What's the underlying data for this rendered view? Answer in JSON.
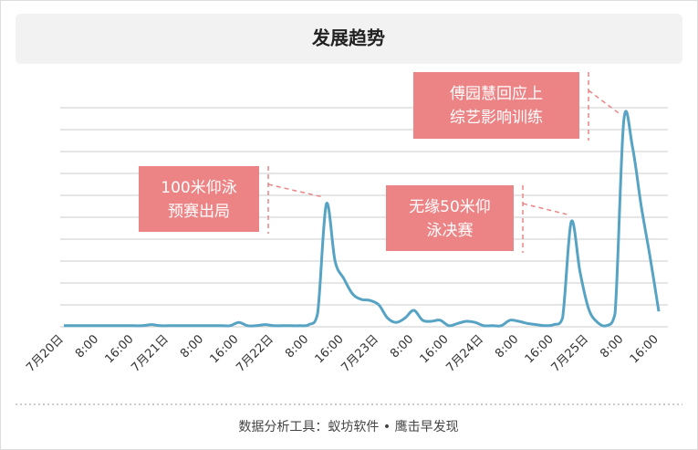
{
  "chart_data": {
    "type": "line",
    "title": "发展趋势",
    "footer": "数据分析工具：蚁坊软件 • 鹰击早发现",
    "categories": [
      "7月20日",
      null,
      null,
      null,
      "8:00",
      null,
      null,
      null,
      "16:00",
      null,
      null,
      null,
      "7月21日",
      null,
      null,
      null,
      "8:00",
      null,
      null,
      null,
      "16:00",
      null,
      null,
      null,
      "7月22日",
      null,
      null,
      null,
      "8:00",
      null,
      null,
      null,
      "16:00",
      null,
      null,
      null,
      "7月23日",
      null,
      null,
      null,
      "8:00",
      null,
      null,
      null,
      "16:00",
      null,
      null,
      null,
      "7月24日",
      null,
      null,
      null,
      "8:00",
      null,
      null,
      null,
      "16:00",
      null,
      null,
      null,
      "7月25日",
      null,
      null,
      null,
      "8:00",
      null,
      null,
      null,
      "16:00"
    ],
    "series": [
      {
        "color": "#57a3c4",
        "values": [
          0.05,
          0.05,
          0.05,
          0.05,
          0.05,
          0.05,
          0.05,
          0.05,
          0.05,
          0.05,
          0.1,
          0.05,
          0.05,
          0.05,
          0.05,
          0.05,
          0.05,
          0.05,
          0.05,
          0.05,
          0.2,
          0.05,
          0.05,
          0.1,
          0.05,
          0.05,
          0.05,
          0.05,
          0.1,
          0.6,
          5.6,
          3.0,
          2.2,
          1.5,
          1.25,
          1.2,
          1.0,
          0.4,
          0.2,
          0.4,
          0.75,
          0.3,
          0.25,
          0.3,
          0.05,
          0.15,
          0.25,
          0.2,
          0.05,
          0.05,
          0.05,
          0.3,
          0.25,
          0.15,
          0.1,
          0.05,
          0.1,
          0.4,
          4.8,
          2.5,
          0.8,
          0.2,
          0.05,
          0.6,
          9.4,
          8.2,
          5.5,
          3.2,
          0.7
        ]
      }
    ],
    "ylim": [
      0,
      10
    ],
    "yticks": [
      0,
      1,
      2,
      3,
      4,
      5,
      6,
      7,
      8,
      9,
      10
    ],
    "grid": true,
    "annotations": [
      {
        "index": 30,
        "lines": [
          "100米仰泳",
          "预赛出局"
        ]
      },
      {
        "index": 58,
        "lines": [
          "无缘50米仰",
          "泳决赛"
        ]
      },
      {
        "index": 64,
        "lines": [
          "傅园慧回应上",
          "综艺影响训练"
        ]
      }
    ],
    "annotation_color": "#ec8486"
  }
}
